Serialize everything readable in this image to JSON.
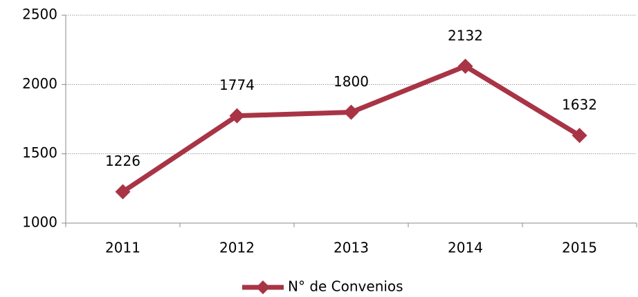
{
  "chart_data": {
    "type": "line",
    "categories": [
      "2011",
      "2012",
      "2013",
      "2014",
      "2015"
    ],
    "series": [
      {
        "name": "N° de Convenios",
        "color": "#a83445",
        "values": [
          1226,
          1774,
          1800,
          2132,
          1632
        ]
      }
    ],
    "ylim": [
      1000,
      2500
    ],
    "yticks": [
      1000,
      1500,
      2000,
      2500
    ],
    "grid": true,
    "legend": "bottom"
  }
}
